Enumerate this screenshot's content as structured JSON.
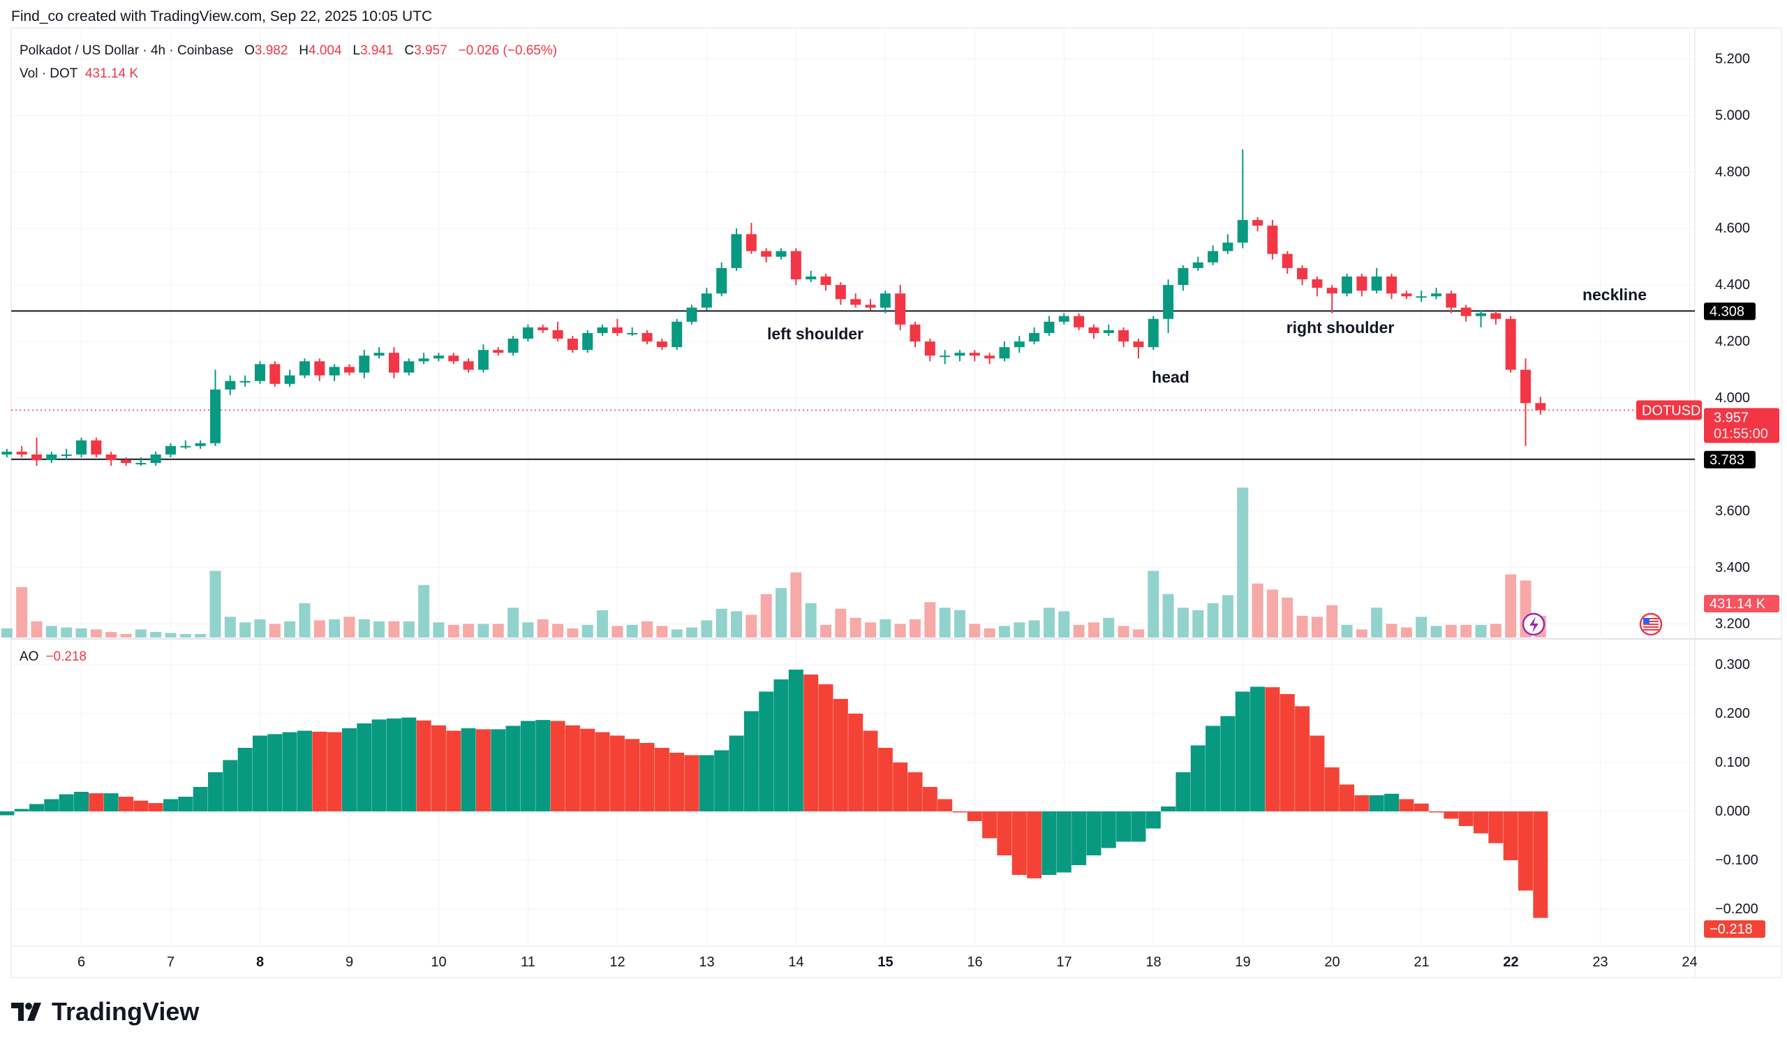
{
  "credit": "Find_co created with TradingView.com, Sep 22, 2025 10:05 UTC",
  "legend": {
    "symbol": "Polkadot / US Dollar · 4h · Coinbase",
    "o_label": "O",
    "o": "3.982",
    "h_label": "H",
    "h": "4.004",
    "l_label": "L",
    "l": "3.941",
    "c_label": "C",
    "c": "3.957",
    "change": "−0.026 (−0.65%)",
    "vol_label": "Vol · DOT",
    "vol": "431.14 K"
  },
  "ao_legend": {
    "label": "AO",
    "value": "−0.218"
  },
  "logo": "TradingView",
  "colors": {
    "up": "#089981",
    "down": "#F23645",
    "vol_up": "#92D2CC",
    "vol_down": "#F7A9A7",
    "ao_up": "#089981",
    "ao_down": "#F44336"
  },
  "chart_data": [
    {
      "type": "candlestick",
      "title": "Polkadot / US Dollar · 4h · Coinbase",
      "x_ticks": [
        "6",
        "7",
        "8",
        "9",
        "10",
        "11",
        "12",
        "13",
        "14",
        "15",
        "16",
        "17",
        "18",
        "19",
        "20",
        "21",
        "22",
        "23",
        "24"
      ],
      "x_ticks_bold": [
        "8",
        "15",
        "22"
      ],
      "y_ticks": [
        "5.200",
        "5.000",
        "4.800",
        "4.600",
        "4.400",
        "4.200",
        "4.000",
        "3.600",
        "3.400",
        "3.200"
      ],
      "ylim": [
        3.2,
        5.25
      ],
      "grid": true,
      "ohlc": [
        [
          3.8,
          3.82,
          3.79,
          3.81
        ],
        [
          3.81,
          3.83,
          3.79,
          3.8
        ],
        [
          3.8,
          3.86,
          3.76,
          3.78
        ],
        [
          3.78,
          3.81,
          3.77,
          3.8
        ],
        [
          3.8,
          3.82,
          3.78,
          3.8
        ],
        [
          3.8,
          3.86,
          3.79,
          3.85
        ],
        [
          3.85,
          3.86,
          3.79,
          3.8
        ],
        [
          3.8,
          3.81,
          3.76,
          3.78
        ],
        [
          3.78,
          3.79,
          3.76,
          3.77
        ],
        [
          3.77,
          3.79,
          3.76,
          3.77
        ],
        [
          3.77,
          3.81,
          3.76,
          3.8
        ],
        [
          3.8,
          3.84,
          3.79,
          3.83
        ],
        [
          3.83,
          3.85,
          3.82,
          3.83
        ],
        [
          3.83,
          3.85,
          3.82,
          3.84
        ],
        [
          3.84,
          4.1,
          3.83,
          4.03
        ],
        [
          4.03,
          4.08,
          4.01,
          4.06
        ],
        [
          4.06,
          4.08,
          4.04,
          4.06
        ],
        [
          4.06,
          4.13,
          4.05,
          4.12
        ],
        [
          4.12,
          4.13,
          4.04,
          4.05
        ],
        [
          4.05,
          4.1,
          4.04,
          4.08
        ],
        [
          4.08,
          4.14,
          4.07,
          4.13
        ],
        [
          4.13,
          4.14,
          4.06,
          4.08
        ],
        [
          4.08,
          4.12,
          4.06,
          4.11
        ],
        [
          4.11,
          4.12,
          4.08,
          4.09
        ],
        [
          4.09,
          4.17,
          4.07,
          4.15
        ],
        [
          4.15,
          4.18,
          4.14,
          4.16
        ],
        [
          4.16,
          4.18,
          4.07,
          4.09
        ],
        [
          4.09,
          4.14,
          4.08,
          4.13
        ],
        [
          4.13,
          4.16,
          4.12,
          4.14
        ],
        [
          4.14,
          4.16,
          4.13,
          4.15
        ],
        [
          4.15,
          4.16,
          4.12,
          4.13
        ],
        [
          4.13,
          4.14,
          4.09,
          4.1
        ],
        [
          4.1,
          4.19,
          4.09,
          4.17
        ],
        [
          4.17,
          4.18,
          4.15,
          4.16
        ],
        [
          4.16,
          4.22,
          4.15,
          4.21
        ],
        [
          4.21,
          4.26,
          4.2,
          4.25
        ],
        [
          4.25,
          4.26,
          4.23,
          4.24
        ],
        [
          4.24,
          4.27,
          4.2,
          4.21
        ],
        [
          4.21,
          4.22,
          4.16,
          4.17
        ],
        [
          4.17,
          4.24,
          4.16,
          4.23
        ],
        [
          4.23,
          4.26,
          4.22,
          4.25
        ],
        [
          4.25,
          4.28,
          4.22,
          4.23
        ],
        [
          4.23,
          4.25,
          4.22,
          4.23
        ],
        [
          4.23,
          4.24,
          4.19,
          4.2
        ],
        [
          4.2,
          4.21,
          4.17,
          4.18
        ],
        [
          4.18,
          4.28,
          4.17,
          4.27
        ],
        [
          4.27,
          4.33,
          4.26,
          4.32
        ],
        [
          4.32,
          4.39,
          4.31,
          4.37
        ],
        [
          4.37,
          4.48,
          4.36,
          4.46
        ],
        [
          4.46,
          4.6,
          4.45,
          4.58
        ],
        [
          4.58,
          4.62,
          4.51,
          4.52
        ],
        [
          4.52,
          4.53,
          4.48,
          4.5
        ],
        [
          4.5,
          4.53,
          4.49,
          4.52
        ],
        [
          4.52,
          4.53,
          4.4,
          4.42
        ],
        [
          4.42,
          4.45,
          4.41,
          4.43
        ],
        [
          4.43,
          4.44,
          4.38,
          4.4
        ],
        [
          4.4,
          4.41,
          4.33,
          4.35
        ],
        [
          4.35,
          4.37,
          4.32,
          4.33
        ],
        [
          4.33,
          4.35,
          4.31,
          4.32
        ],
        [
          4.32,
          4.38,
          4.3,
          4.37
        ],
        [
          4.37,
          4.4,
          4.24,
          4.26
        ],
        [
          4.26,
          4.27,
          4.18,
          4.2
        ],
        [
          4.2,
          4.21,
          4.13,
          4.15
        ],
        [
          4.15,
          4.17,
          4.12,
          4.15
        ],
        [
          4.15,
          4.17,
          4.13,
          4.16
        ],
        [
          4.16,
          4.17,
          4.13,
          4.15
        ],
        [
          4.15,
          4.16,
          4.12,
          4.14
        ],
        [
          4.14,
          4.2,
          4.13,
          4.18
        ],
        [
          4.18,
          4.22,
          4.16,
          4.2
        ],
        [
          4.2,
          4.25,
          4.19,
          4.23
        ],
        [
          4.23,
          4.29,
          4.22,
          4.27
        ],
        [
          4.27,
          4.3,
          4.26,
          4.29
        ],
        [
          4.29,
          4.3,
          4.24,
          4.25
        ],
        [
          4.25,
          4.26,
          4.21,
          4.23
        ],
        [
          4.23,
          4.26,
          4.22,
          4.24
        ],
        [
          4.24,
          4.25,
          4.18,
          4.2
        ],
        [
          4.2,
          4.21,
          4.14,
          4.18
        ],
        [
          4.18,
          4.29,
          4.17,
          4.28
        ],
        [
          4.28,
          4.42,
          4.23,
          4.4
        ],
        [
          4.4,
          4.47,
          4.38,
          4.46
        ],
        [
          4.46,
          4.5,
          4.45,
          4.48
        ],
        [
          4.48,
          4.54,
          4.47,
          4.52
        ],
        [
          4.52,
          4.58,
          4.51,
          4.55
        ],
        [
          4.55,
          4.88,
          4.53,
          4.63
        ],
        [
          4.63,
          4.64,
          4.59,
          4.61
        ],
        [
          4.61,
          4.63,
          4.49,
          4.51
        ],
        [
          4.51,
          4.52,
          4.44,
          4.46
        ],
        [
          4.46,
          4.47,
          4.4,
          4.42
        ],
        [
          4.42,
          4.43,
          4.36,
          4.39
        ],
        [
          4.39,
          4.4,
          4.3,
          4.37
        ],
        [
          4.37,
          4.44,
          4.36,
          4.43
        ],
        [
          4.43,
          4.44,
          4.36,
          4.38
        ],
        [
          4.38,
          4.46,
          4.37,
          4.43
        ],
        [
          4.43,
          4.44,
          4.35,
          4.37
        ],
        [
          4.37,
          4.38,
          4.35,
          4.36
        ],
        [
          4.36,
          4.38,
          4.34,
          4.36
        ],
        [
          4.36,
          4.39,
          4.35,
          4.37
        ],
        [
          4.37,
          4.38,
          4.3,
          4.32
        ],
        [
          4.32,
          4.33,
          4.27,
          4.29
        ],
        [
          4.29,
          4.31,
          4.25,
          4.3
        ],
        [
          4.3,
          4.31,
          4.26,
          4.28
        ],
        [
          4.28,
          4.29,
          4.09,
          4.1
        ],
        [
          4.1,
          4.14,
          3.83,
          3.982
        ],
        [
          3.982,
          4.004,
          3.941,
          3.957
        ]
      ],
      "volume_k": [
        180,
        1000,
        320,
        230,
        200,
        180,
        160,
        110,
        70,
        160,
        110,
        90,
        70,
        70,
        1320,
        410,
        300,
        360,
        270,
        320,
        680,
        340,
        360,
        410,
        360,
        320,
        320,
        320,
        1040,
        300,
        250,
        270,
        270,
        270,
        590,
        300,
        360,
        270,
        180,
        250,
        540,
        230,
        250,
        320,
        230,
        160,
        200,
        340,
        570,
        520,
        450,
        860,
        980,
        1290,
        680,
        250,
        570,
        390,
        300,
        360,
        270,
        360,
        700,
        590,
        540,
        270,
        180,
        230,
        300,
        340,
        590,
        520,
        250,
        300,
        390,
        230,
        160,
        1320,
        860,
        590,
        540,
        680,
        840,
        2970,
        1070,
        950,
        790,
        430,
        410,
        640,
        250,
        160,
        590,
        270,
        200,
        410,
        230,
        250,
        250,
        250,
        270,
        1250,
        1130,
        431.14
      ],
      "horizontal_lines": [
        {
          "value": 4.308,
          "label": "4.308"
        },
        {
          "value": 3.783,
          "label": "3.783"
        }
      ],
      "annotations": [
        {
          "text": "neckline"
        },
        {
          "text": "left shoulder"
        },
        {
          "text": "head"
        },
        {
          "text": "right shoulder"
        }
      ],
      "last_price": {
        "symbol": "DOTUSD",
        "value": 3.957,
        "label": "3.957",
        "countdown": "01:55:00"
      },
      "volume_label": "431.14 K"
    },
    {
      "type": "bar",
      "title": "AO",
      "y_ticks": [
        "0.300",
        "0.200",
        "0.100",
        "0.000",
        "−0.100",
        "−0.200"
      ],
      "ylim": [
        -0.23,
        0.32
      ],
      "values": [
        -0.008,
        0.005,
        0.015,
        0.025,
        0.035,
        0.04,
        0.037,
        0.037,
        0.03,
        0.022,
        0.017,
        0.025,
        0.03,
        0.05,
        0.08,
        0.105,
        0.13,
        0.155,
        0.158,
        0.162,
        0.165,
        0.163,
        0.162,
        0.17,
        0.18,
        0.188,
        0.19,
        0.192,
        0.186,
        0.176,
        0.165,
        0.17,
        0.168,
        0.168,
        0.175,
        0.185,
        0.187,
        0.185,
        0.176,
        0.169,
        0.162,
        0.155,
        0.148,
        0.14,
        0.13,
        0.12,
        0.115,
        0.115,
        0.125,
        0.155,
        0.205,
        0.245,
        0.27,
        0.29,
        0.28,
        0.26,
        0.23,
        0.2,
        0.165,
        0.13,
        0.1,
        0.08,
        0.05,
        0.025,
        0.0,
        -0.02,
        -0.055,
        -0.09,
        -0.13,
        -0.137,
        -0.13,
        -0.125,
        -0.11,
        -0.09,
        -0.075,
        -0.062,
        -0.062,
        -0.035,
        0.01,
        0.08,
        0.135,
        0.175,
        0.195,
        0.245,
        0.255,
        0.254,
        0.24,
        0.215,
        0.155,
        0.09,
        0.055,
        0.033,
        0.033,
        0.036,
        0.025,
        0.016,
        0.0,
        -0.015,
        -0.03,
        -0.045,
        -0.065,
        -0.1,
        -0.162,
        -0.218
      ],
      "last_label": "−0.218"
    }
  ],
  "icons": {
    "event": "lightning-icon",
    "economic": "us-flag-icon"
  }
}
